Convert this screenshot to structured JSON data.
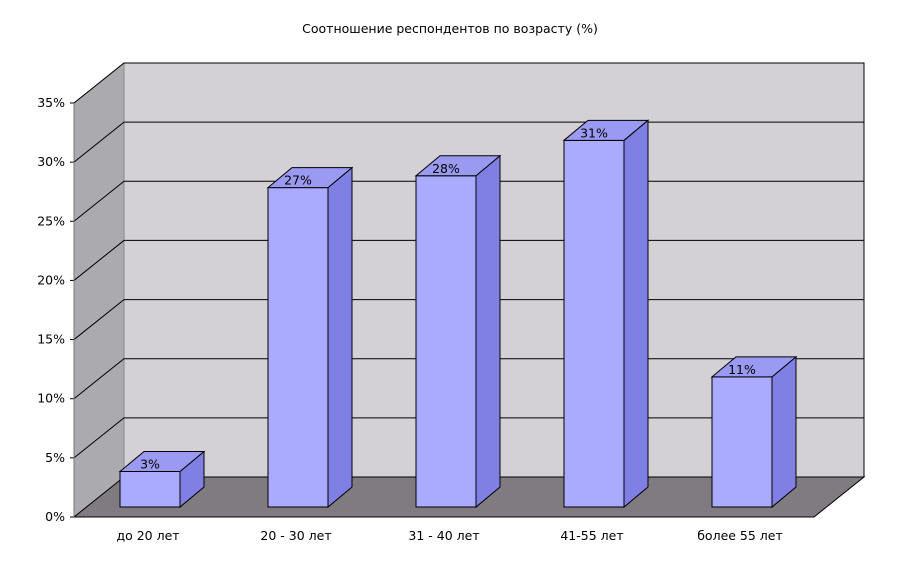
{
  "chart_data": {
    "type": "bar",
    "title": "Соотношение респондентов по возрасту (%)",
    "categories": [
      "до 20 лет",
      "20 - 30 лет",
      "31 - 40 лет",
      "41-55 лет",
      "более 55 лет"
    ],
    "values": [
      3,
      27,
      28,
      31,
      11
    ],
    "value_labels": [
      "3%",
      "27%",
      "28%",
      "31%",
      "11%"
    ],
    "y_ticks": [
      "0%",
      "5%",
      "10%",
      "15%",
      "20%",
      "25%",
      "30%",
      "35%"
    ],
    "ylim": [
      0,
      35
    ],
    "y_unit": "%",
    "grid": true,
    "three_d": true,
    "colors": {
      "bar_front": "#AAAAFF",
      "bar_top": "#9A9AF2",
      "bar_side": "#8080E4",
      "back_wall": "#D3D1D5",
      "side_wall": "#ABAAAF",
      "floor": "#7F7B80",
      "grid": "#000000",
      "outline": "#000000"
    }
  }
}
